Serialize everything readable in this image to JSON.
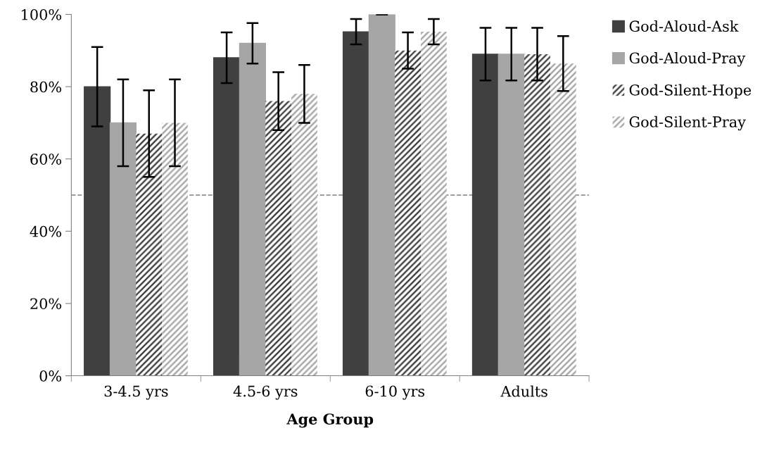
{
  "chart_data": {
    "type": "bar",
    "xlabel": "Age Group",
    "categories": [
      "3-4.5 yrs",
      "4.5-6 yrs",
      "6-10 yrs",
      "Adults"
    ],
    "series": [
      {
        "name": "God-Aloud-Ask",
        "color": "#404040",
        "values": [
          80,
          88,
          95.2,
          89
        ],
        "errors": [
          11,
          7,
          3.5,
          7.3
        ]
      },
      {
        "name": "God-Aloud-Pray",
        "color": "#a6a6a6",
        "values": [
          70,
          92,
          100,
          89
        ],
        "errors": [
          12,
          5.6,
          0,
          7.3
        ]
      },
      {
        "name": "God-Silent-Hope",
        "color": "#404040",
        "values": [
          67,
          76,
          90,
          89
        ],
        "errors": [
          12,
          8,
          5,
          7.3
        ]
      },
      {
        "name": "God-Silent-Pray",
        "color": "#a6a6a6",
        "values": [
          70,
          78,
          95.2,
          86.4
        ],
        "errors": [
          12,
          8,
          3.5,
          7.6
        ]
      }
    ],
    "ylim": [
      0,
      100
    ],
    "yticks": [
      {
        "value": 0,
        "label": "0%"
      },
      {
        "value": 20,
        "label": "20%"
      },
      {
        "value": 40,
        "label": "40%"
      },
      {
        "value": 60,
        "label": "60%"
      },
      {
        "value": 80,
        "label": "80%"
      },
      {
        "value": 100,
        "label": "100%"
      }
    ],
    "ref_lines": [
      {
        "axis": "y",
        "value": 50,
        "color": "#808080",
        "line_style": "dashed"
      }
    ],
    "grid": false,
    "legend": "right"
  }
}
